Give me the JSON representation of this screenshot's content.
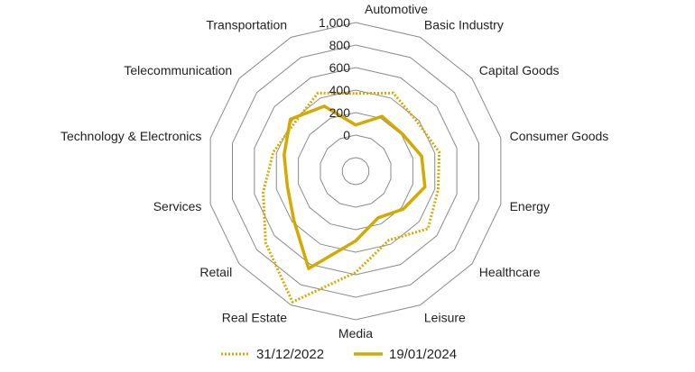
{
  "chart_data": {
    "type": "radar",
    "title": "",
    "categories": [
      "Automotive",
      "Basic Industry",
      "Capital Goods",
      "Consumer Goods",
      "Energy",
      "Healthcare",
      "Leisure",
      "Media",
      "Real Estate",
      "Retail",
      "Services",
      "Technology & Electronics",
      "Telecommunication",
      "Transportation"
    ],
    "r_ticks": [
      "0",
      "200",
      "400",
      "600",
      "800",
      "1,000"
    ],
    "r_tick_values": [
      0,
      200,
      400,
      600,
      800,
      1000
    ],
    "r_range": [
      -200,
      1000
    ],
    "grid": true,
    "legend_position": "bottom",
    "series": [
      {
        "name": "31/12/2022",
        "style": "dotted",
        "color": "#d4aa00",
        "values": [
          370,
          450,
          380,
          440,
          430,
          500,
          360,
          580,
          970,
          700,
          520,
          430,
          370,
          450
        ]
      },
      {
        "name": "19/01/2024",
        "style": "solid",
        "color": "#d4aa00",
        "values": [
          90,
          220,
          210,
          280,
          310,
          220,
          140,
          300,
          640,
          380,
          300,
          330,
          420,
          320
        ]
      }
    ]
  },
  "colors": {
    "grid": "#8a8a8a",
    "text": "#222222",
    "series": "#d4aa00"
  }
}
